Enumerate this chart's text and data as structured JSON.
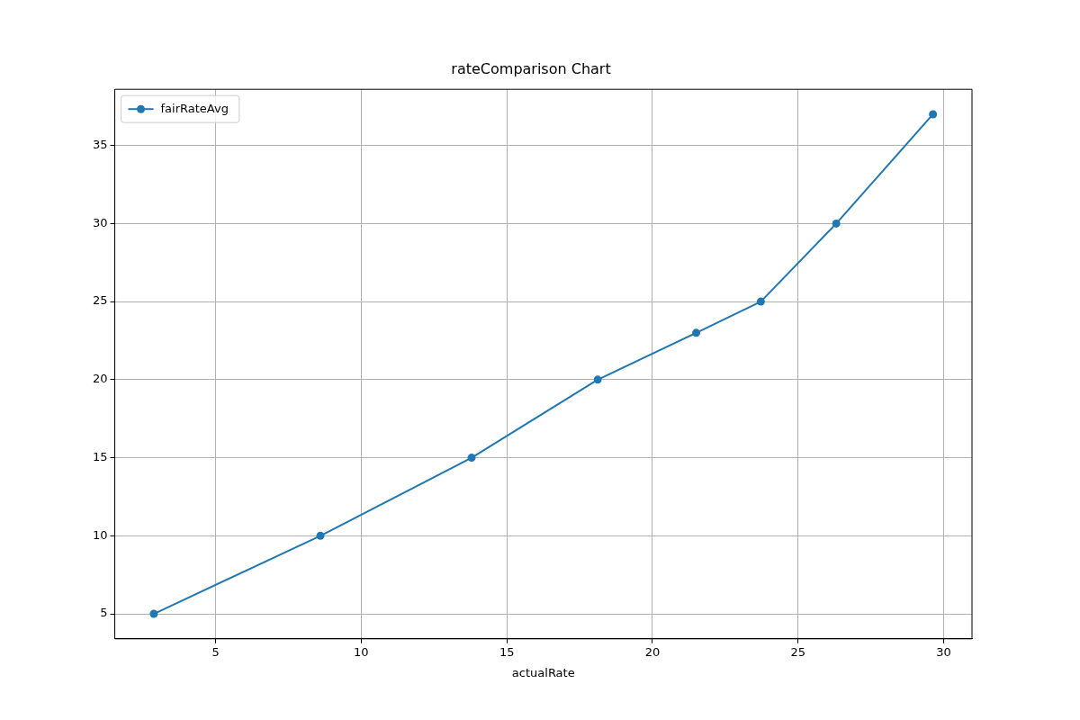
{
  "chart_data": {
    "type": "line",
    "title": "rateComparison Chart",
    "xlabel": "actualRate",
    "series": [
      {
        "name": "fairRateAvg",
        "color": "#1f77b4",
        "x": [
          2.88,
          8.6,
          13.79,
          18.12,
          21.5,
          23.72,
          26.31,
          29.63
        ],
        "values": [
          5,
          10,
          15,
          20,
          23,
          25,
          30,
          37
        ]
      }
    ],
    "xlim": [
      1.54,
      30.97
    ],
    "xticks": [
      5,
      10,
      15,
      20,
      25,
      30
    ],
    "ylim": [
      3.4,
      38.6
    ],
    "yticks": [
      5,
      10,
      15,
      20,
      25,
      30,
      35
    ],
    "grid": true,
    "legend": "top left",
    "marker": "circle",
    "line_style": "solid"
  }
}
